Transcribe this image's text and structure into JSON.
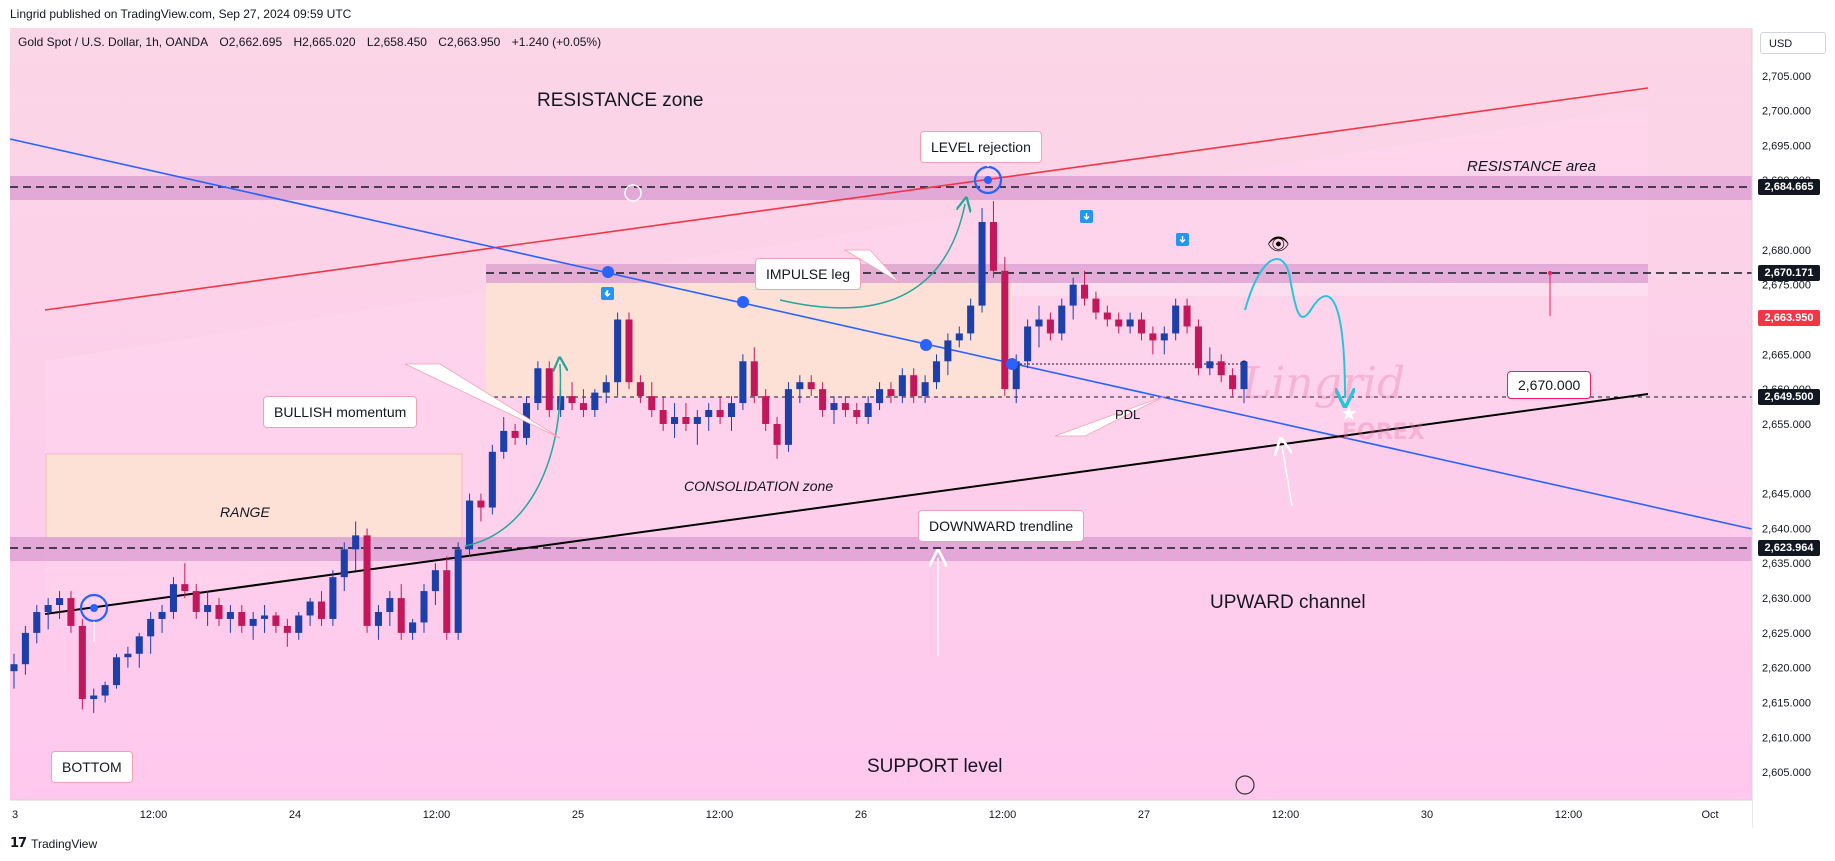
{
  "header": {
    "publisher": "Lingrid published on TradingView.com, Sep 27, 2024 09:59 UTC",
    "symbol": "Gold Spot / U.S. Dollar, 1h, OANDA",
    "open": "O2,662.695",
    "high": "H2,665.020",
    "low": "L2,658.450",
    "close": "C2,663.950",
    "change": "+1.240 (+0.05%)"
  },
  "currency": "USD",
  "footer": {
    "brand": "TradingView"
  },
  "watermark": {
    "line1": "Lingrid",
    "line2": "FOREX"
  },
  "annotations": {
    "resistance_zone": "RESISTANCE zone",
    "level_rejection": "LEVEL rejection",
    "resistance_area": "RESISTANCE area",
    "impulse_leg": "IMPULSE leg",
    "bullish_momentum": "BULLISH momentum",
    "range": "RANGE",
    "consolidation_zone": "CONSOLIDATION zone",
    "pdl": "PDL",
    "downward_trendline": "DOWNWARD trendline",
    "upward_channel": "UPWARD channel",
    "bottom": "BOTTOM",
    "support_level": "SUPPORT level",
    "target_price": "2,670.000"
  },
  "colors": {
    "bull": "#1c3faa",
    "bear": "#c2185b",
    "resistance_line": "#f23645",
    "trendline": "#2962ff",
    "channel": "#000000",
    "zone_band": "#d99bd2",
    "background_top": "#fbd6e6",
    "background_bottom": "#ffc8ef",
    "projection": "#26c6da",
    "current_price_bg": "#f23645"
  },
  "chart_data": {
    "type": "candlestick",
    "instrument": "Gold Spot / U.S. Dollar",
    "timeframe": "1h",
    "x_tick_labels": [
      "3",
      "12:00",
      "24",
      "12:00",
      "25",
      "12:00",
      "26",
      "12:00",
      "27",
      "12:00",
      "30",
      "12:00",
      "Oct"
    ],
    "y_tick_labels": [
      "2,705.000",
      "2,700.000",
      "2,695.000",
      "2,690.000",
      "2,680.000",
      "2,675.000",
      "2,665.000",
      "2,660.000",
      "2,655.000",
      "2,645.000",
      "2,640.000",
      "2,635.000",
      "2,630.000",
      "2,625.000",
      "2,620.000",
      "2,615.000",
      "2,610.000",
      "2,605.000"
    ],
    "y_range": [
      2601,
      2711
    ],
    "key_levels": [
      {
        "label": "2,684.665",
        "value": 2684.665
      },
      {
        "label": "2,670.171",
        "value": 2670.171
      },
      {
        "label": "2,663.950",
        "value": 2663.95
      },
      {
        "label": "2,649.500",
        "value": 2649.5
      },
      {
        "label": "2,623.964",
        "value": 2623.964
      }
    ],
    "candles_ohlc": [
      [
        2619.5,
        2622,
        2617,
        2620.5
      ],
      [
        2620.5,
        2626,
        2619,
        2625
      ],
      [
        2625,
        2629,
        2623.5,
        2628
      ],
      [
        2628,
        2630,
        2625.5,
        2629
      ],
      [
        2629,
        2631,
        2627,
        2630
      ],
      [
        2630,
        2631,
        2625,
        2626
      ],
      [
        2626,
        2627,
        2614,
        2615.5
      ],
      [
        2615.5,
        2617,
        2613.5,
        2616
      ],
      [
        2616,
        2618,
        2615,
        2617.5
      ],
      [
        2617.5,
        2622,
        2617,
        2621.5
      ],
      [
        2621.5,
        2623,
        2620,
        2622
      ],
      [
        2622,
        2625,
        2620,
        2624.5
      ],
      [
        2624.5,
        2628,
        2622,
        2627
      ],
      [
        2627,
        2629,
        2625,
        2628
      ],
      [
        2628,
        2633,
        2627,
        2632
      ],
      [
        2632,
        2635,
        2630,
        2631
      ],
      [
        2631,
        2632,
        2627,
        2628
      ],
      [
        2628,
        2631,
        2626,
        2629
      ],
      [
        2629,
        2630,
        2626,
        2627
      ],
      [
        2627,
        2629,
        2625,
        2628
      ],
      [
        2628,
        2629,
        2625,
        2626
      ],
      [
        2626,
        2628,
        2624,
        2627
      ],
      [
        2627,
        2629,
        2625,
        2627.5
      ],
      [
        2627.5,
        2628,
        2625,
        2626
      ],
      [
        2626,
        2627,
        2623,
        2625
      ],
      [
        2625,
        2628,
        2624,
        2627.5
      ],
      [
        2627.5,
        2630,
        2626,
        2629.5
      ],
      [
        2629.5,
        2631,
        2626,
        2627
      ],
      [
        2627,
        2634,
        2626,
        2633
      ],
      [
        2633,
        2638,
        2631,
        2637
      ],
      [
        2637,
        2641,
        2634,
        2639
      ],
      [
        2639,
        2640,
        2625,
        2626
      ],
      [
        2626,
        2629,
        2624,
        2628
      ],
      [
        2628,
        2631,
        2626,
        2630
      ],
      [
        2630,
        2632,
        2624,
        2625
      ],
      [
        2625,
        2627,
        2624,
        2626.5
      ],
      [
        2626.5,
        2632,
        2625,
        2631
      ],
      [
        2631,
        2635,
        2629,
        2634
      ],
      [
        2634,
        2636,
        2624,
        2625
      ],
      [
        2625,
        2638,
        2624,
        2637
      ],
      [
        2637,
        2645,
        2636,
        2644
      ],
      [
        2644,
        2645,
        2641,
        2643
      ],
      [
        2643,
        2652,
        2642,
        2651
      ],
      [
        2651,
        2656,
        2650,
        2654
      ],
      [
        2654,
        2655,
        2652,
        2653
      ],
      [
        2653,
        2659,
        2652,
        2658
      ],
      [
        2658,
        2664,
        2657,
        2663
      ],
      [
        2663,
        2664,
        2656,
        2657
      ],
      [
        2657,
        2660,
        2656,
        2659
      ],
      [
        2659,
        2661,
        2657,
        2658
      ],
      [
        2658,
        2660,
        2656,
        2657
      ],
      [
        2657,
        2660,
        2656,
        2659.5
      ],
      [
        2659.5,
        2662,
        2658,
        2661
      ],
      [
        2661,
        2671,
        2659,
        2670
      ],
      [
        2670,
        2671,
        2660,
        2661
      ],
      [
        2661,
        2662,
        2658,
        2659
      ],
      [
        2659,
        2661,
        2656,
        2657
      ],
      [
        2657,
        2659,
        2654,
        2655
      ],
      [
        2655,
        2658,
        2653,
        2656
      ],
      [
        2656,
        2658,
        2654,
        2655
      ],
      [
        2655,
        2657,
        2652,
        2656
      ],
      [
        2656,
        2658,
        2654,
        2657
      ],
      [
        2657,
        2659,
        2655,
        2656
      ],
      [
        2656,
        2659,
        2654,
        2658
      ],
      [
        2658,
        2665,
        2657,
        2664
      ],
      [
        2664,
        2666,
        2658,
        2659
      ],
      [
        2659,
        2660,
        2654,
        2655
      ],
      [
        2655,
        2656,
        2650,
        2652
      ],
      [
        2652,
        2661,
        2651,
        2660
      ],
      [
        2660,
        2662,
        2658,
        2661
      ],
      [
        2661,
        2662,
        2659,
        2660
      ],
      [
        2660,
        2661,
        2656,
        2657
      ],
      [
        2657,
        2659,
        2655,
        2658
      ],
      [
        2658,
        2659,
        2656,
        2657
      ],
      [
        2657,
        2658,
        2655,
        2656
      ],
      [
        2656,
        2659,
        2655,
        2658
      ],
      [
        2658,
        2661,
        2657,
        2660
      ],
      [
        2660,
        2661,
        2658,
        2659
      ],
      [
        2659,
        2663,
        2658,
        2662
      ],
      [
        2662,
        2663,
        2658,
        2659
      ],
      [
        2659,
        2662,
        2658,
        2661
      ],
      [
        2661,
        2665,
        2660,
        2664
      ],
      [
        2664,
        2668,
        2662,
        2667
      ],
      [
        2667,
        2669,
        2666,
        2668
      ],
      [
        2668,
        2673,
        2667,
        2672
      ],
      [
        2672,
        2686,
        2671,
        2684
      ],
      [
        2684,
        2687,
        2676,
        2677
      ],
      [
        2677,
        2679,
        2659,
        2660
      ],
      [
        2660,
        2665,
        2658,
        2664
      ],
      [
        2664,
        2670,
        2663,
        2669
      ],
      [
        2669,
        2672,
        2666,
        2670
      ],
      [
        2670,
        2671,
        2667,
        2668
      ],
      [
        2668,
        2673,
        2667,
        2672
      ],
      [
        2672,
        2676,
        2670,
        2675
      ],
      [
        2675,
        2677,
        2672,
        2673
      ],
      [
        2673,
        2674,
        2670,
        2671
      ],
      [
        2671,
        2672,
        2669,
        2670
      ],
      [
        2670,
        2671,
        2668,
        2669
      ],
      [
        2669,
        2671,
        2668,
        2670
      ],
      [
        2670,
        2671,
        2667,
        2668
      ],
      [
        2668,
        2669,
        2665,
        2667
      ],
      [
        2667,
        2669,
        2665,
        2668
      ],
      [
        2668,
        2673,
        2667,
        2672
      ],
      [
        2672,
        2673,
        2668,
        2669
      ],
      [
        2669,
        2670,
        2662,
        2663
      ],
      [
        2663,
        2666,
        2662,
        2664
      ],
      [
        2664,
        2665,
        2661,
        2662
      ],
      [
        2662,
        2663,
        2659,
        2660
      ],
      [
        2660,
        2664,
        2658,
        2663.95
      ]
    ]
  }
}
